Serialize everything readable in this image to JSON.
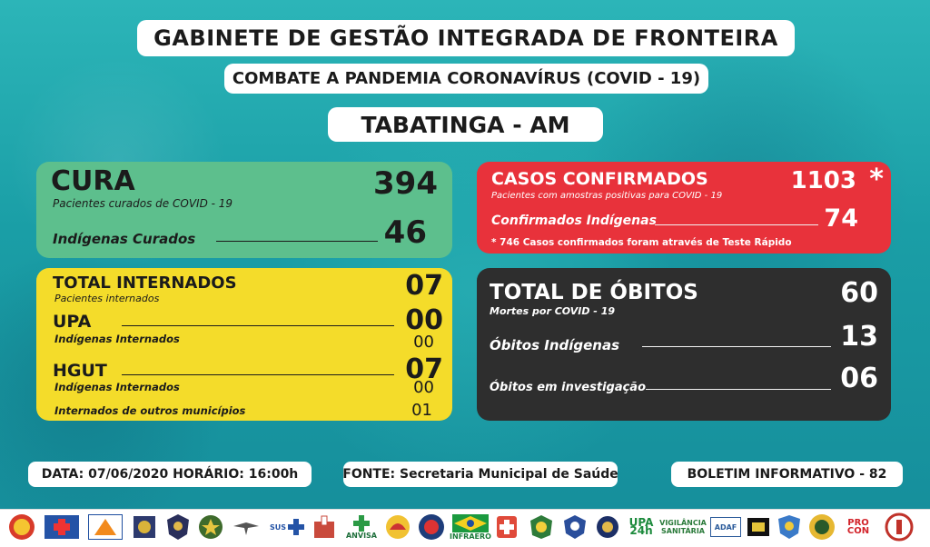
{
  "header": {
    "title": "GABINETE DE GESTÃO INTEGRADA DE FRONTEIRA",
    "subtitle": "COMBATE A PANDEMIA CORONAVÍRUS (COVID - 19)",
    "city": "TABATINGA - AM"
  },
  "cura": {
    "title": "CURA",
    "value": "394",
    "caption": "Pacientes curados de COVID - 19",
    "indigenous_label": "Indígenas Curados",
    "indigenous_value": "46"
  },
  "confirmados": {
    "title": "CASOS CONFIRMADOS",
    "value": "1103",
    "asterisk": "*",
    "caption": "Pacientes com amostras positivas para COVID - 19",
    "indigenous_label": "Confirmados Indígenas",
    "indigenous_value": "74",
    "note": "* 746 Casos confirmados foram através de Teste Rápido"
  },
  "internados": {
    "title": "TOTAL INTERNADOS",
    "value": "07",
    "caption": "Pacientes internados",
    "upa_label": "UPA",
    "upa_value": "00",
    "upa_indigenous_label": "Indígenas Internados",
    "upa_indigenous_value": "00",
    "hgut_label": "HGUT",
    "hgut_value": "07",
    "hgut_indigenous_label": "Indígenas Internados",
    "hgut_indigenous_value": "00",
    "other_label": "Internados de outros municípios",
    "other_value": "01"
  },
  "obitos": {
    "title": "TOTAL DE ÓBITOS",
    "value": "60",
    "caption": "Mortes por COVID - 19",
    "indigenous_label": "Óbitos Indígenas",
    "indigenous_value": "13",
    "investigation_label": "Óbitos em investigação",
    "investigation_value": "06"
  },
  "footer": {
    "date": "DATA: 07/06/2020  HORÁRIO: 16:00h",
    "source": "FONTE: Secretaria Municipal de Saúde",
    "bulletin": "BOLETIM INFORMATIVO - 82"
  },
  "logos": {
    "anvisa": "ANVISA",
    "infraero": "INFRAERO",
    "upa": "UPA 24h",
    "vigilancia": "VIGILÂNCIA SANITÁRIA",
    "adaf": "ADAF",
    "procon": "PRO CON",
    "sus": "SUS"
  },
  "colors": {
    "cura": "#5dbf8d",
    "confirmados": "#e8323b",
    "internados": "#f4dc2a",
    "obitos": "#2e2e2e",
    "background": "#1fa3a8"
  }
}
